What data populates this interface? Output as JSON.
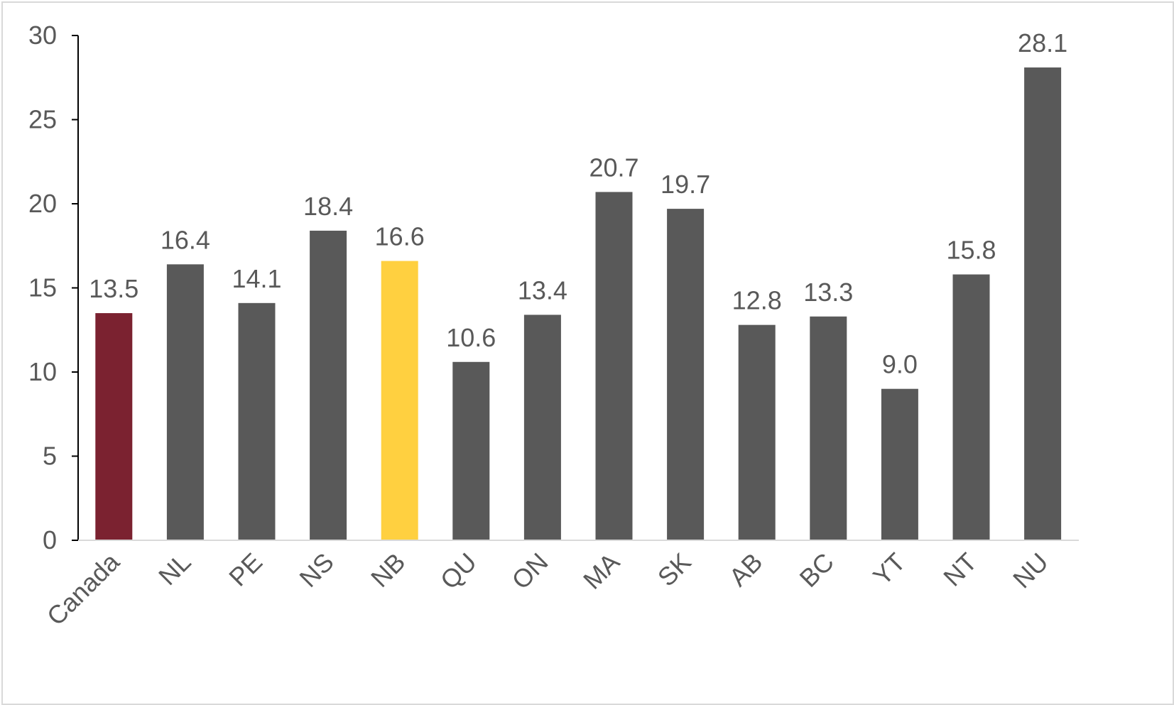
{
  "chart_data": {
    "type": "bar",
    "title": "",
    "xlabel": "",
    "ylabel": "",
    "categories": [
      "Canada",
      "NL",
      "PE",
      "NS",
      "NB",
      "QU",
      "ON",
      "MA",
      "SK",
      "AB",
      "BC",
      "YT",
      "NT",
      "NU"
    ],
    "values": [
      13.5,
      16.4,
      14.1,
      18.4,
      16.6,
      10.6,
      13.4,
      20.7,
      19.7,
      12.8,
      13.3,
      9.0,
      15.8,
      28.1
    ],
    "value_labels": [
      "13.5",
      "16.4",
      "14.1",
      "18.4",
      "16.6",
      "10.6",
      "13.4",
      "20.7",
      "19.7",
      "12.8",
      "13.3",
      "9.0",
      "15.8",
      "28.1"
    ],
    "ylim": [
      0,
      30
    ],
    "yticks": [
      0,
      5,
      10,
      15,
      20,
      25,
      30
    ],
    "ytick_labels": [
      "0",
      "5",
      "10",
      "15",
      "20",
      "25",
      "30"
    ],
    "grid": false,
    "legend": "none",
    "colors": {
      "default_bar": "#595959",
      "highlight_national": "#7b2230",
      "highlight_province": "#ffd040",
      "axis": "#000000",
      "text": "#595959"
    },
    "bar_colors": [
      "#7b2230",
      "#595959",
      "#595959",
      "#595959",
      "#ffd040",
      "#595959",
      "#595959",
      "#595959",
      "#595959",
      "#595959",
      "#595959",
      "#595959",
      "#595959",
      "#595959"
    ]
  }
}
